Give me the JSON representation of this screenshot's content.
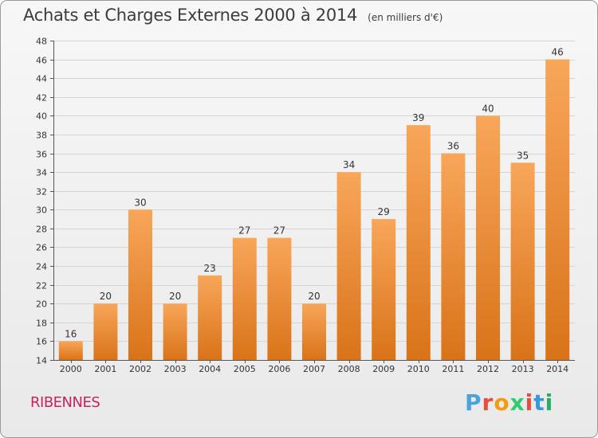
{
  "title": "Achats et Charges Externes 2000 à 2014",
  "unit_note": "(en milliers d'€)",
  "commune": "RIBENNES",
  "logo": {
    "letters": [
      "P",
      "r",
      "o",
      "x",
      "i",
      "t",
      "i"
    ],
    "colors": [
      "#4aa3df",
      "#e74c3c",
      "#f39c12",
      "#2ecc71",
      "#e74c3c",
      "#3498db",
      "#27ae60"
    ]
  },
  "chart_data": {
    "type": "bar",
    "title": "Achats et Charges Externes 2000 à 2014",
    "subtitle": "(en milliers d'€)",
    "categories": [
      "2000",
      "2001",
      "2002",
      "2003",
      "2004",
      "2005",
      "2006",
      "2007",
      "2008",
      "2009",
      "2010",
      "2011",
      "2012",
      "2013",
      "2014"
    ],
    "values": [
      16,
      20,
      30,
      20,
      23,
      27,
      27,
      20,
      34,
      29,
      39,
      36,
      40,
      35,
      46
    ],
    "ylim": [
      14,
      48
    ],
    "yticks": [
      14,
      16,
      18,
      20,
      22,
      24,
      26,
      28,
      30,
      32,
      34,
      36,
      38,
      40,
      42,
      44,
      46,
      48
    ],
    "xlabel": "",
    "ylabel": "",
    "grid": true,
    "bar_color_top": "#f8a65a",
    "bar_color_bottom": "#d97319"
  }
}
